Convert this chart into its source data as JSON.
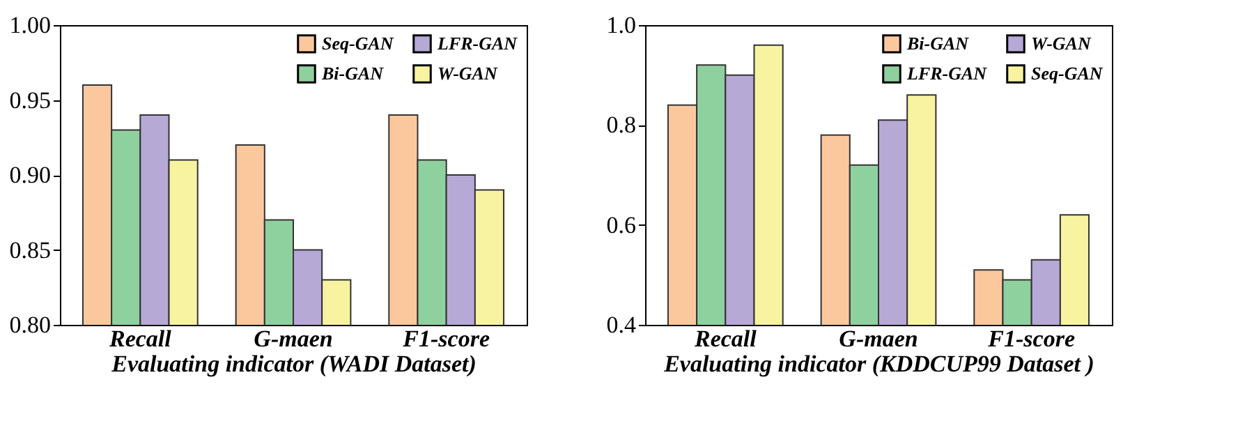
{
  "chart_data": [
    {
      "type": "bar",
      "xlabel": "Evaluating indicator (WADI Dataset)",
      "categories": [
        "Recall",
        "G-maen",
        "F1-score"
      ],
      "ylim": [
        0.8,
        1.0
      ],
      "yticks": [
        {
          "value": 0.8,
          "label": "0.80"
        },
        {
          "value": 0.85,
          "label": "0.85"
        },
        {
          "value": 0.9,
          "label": "0.90"
        },
        {
          "value": 0.95,
          "label": "0.95"
        },
        {
          "value": 1.0,
          "label": "1.00"
        }
      ],
      "legend": "top right",
      "grid": false,
      "series": [
        {
          "name": "Seq-GAN",
          "color": "#fbc89e",
          "values": [
            0.96,
            0.92,
            0.94
          ]
        },
        {
          "name": "Bi-GAN",
          "color": "#8fd19e",
          "values": [
            0.93,
            0.87,
            0.91
          ]
        },
        {
          "name": "LFR-GAN",
          "color": "#b7a9d6",
          "values": [
            0.94,
            0.85,
            0.9
          ]
        },
        {
          "name": "W-GAN",
          "color": "#f7f3a0",
          "values": [
            0.91,
            0.83,
            0.89
          ]
        }
      ]
    },
    {
      "type": "bar",
      "xlabel": "Evaluating indicator (KDDCUP99 Dataset )",
      "categories": [
        "Recall",
        "G-maen",
        "F1-score"
      ],
      "ylim": [
        0.4,
        1.0
      ],
      "yticks": [
        0.4,
        0.6,
        0.8,
        {
          "value": 1.0,
          "label": "1.0"
        }
      ],
      "legend": "top right",
      "grid": false,
      "series": [
        {
          "name": "Bi-GAN",
          "color": "#fbc89e",
          "values": [
            0.84,
            0.78,
            0.51
          ]
        },
        {
          "name": "LFR-GAN",
          "color": "#8fd19e",
          "values": [
            0.92,
            0.72,
            0.49
          ]
        },
        {
          "name": "W-GAN",
          "color": "#b7a9d6",
          "values": [
            0.9,
            0.81,
            0.53
          ]
        },
        {
          "name": "Seq-GAN",
          "color": "#f7f3a0",
          "values": [
            0.96,
            0.86,
            0.62
          ]
        }
      ]
    }
  ]
}
